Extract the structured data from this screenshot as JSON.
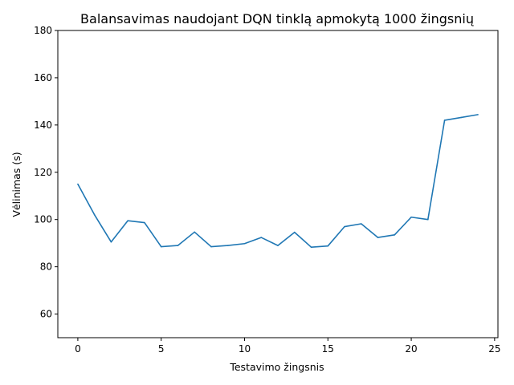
{
  "chart_data": {
    "type": "line",
    "title": "Balansavimas naudojant DQN tinklą apmokytą 1000 žingsnių",
    "xlabel": "Testavimo žingsnis",
    "ylabel": "Vėlinimas (s)",
    "xlim": [
      -1.2,
      25.2
    ],
    "ylim": [
      50,
      180
    ],
    "xticks": [
      0,
      5,
      10,
      15,
      20,
      25
    ],
    "yticks": [
      60,
      80,
      100,
      120,
      140,
      160,
      180
    ],
    "grid": false,
    "series": [
      {
        "color": "#1f77b4",
        "x": [
          0,
          1,
          2,
          3,
          4,
          5,
          6,
          7,
          8,
          9,
          10,
          11,
          12,
          13,
          14,
          15,
          16,
          17,
          18,
          19,
          20,
          21,
          22,
          23,
          24
        ],
        "y": [
          115,
          102,
          90.5,
          99.5,
          98.7,
          88.5,
          89,
          94.7,
          88.5,
          89,
          89.8,
          92.4,
          89,
          94.6,
          88.3,
          88.8,
          97,
          98.2,
          92.4,
          93.5,
          101,
          100,
          142,
          143.2,
          144.4
        ]
      }
    ]
  }
}
